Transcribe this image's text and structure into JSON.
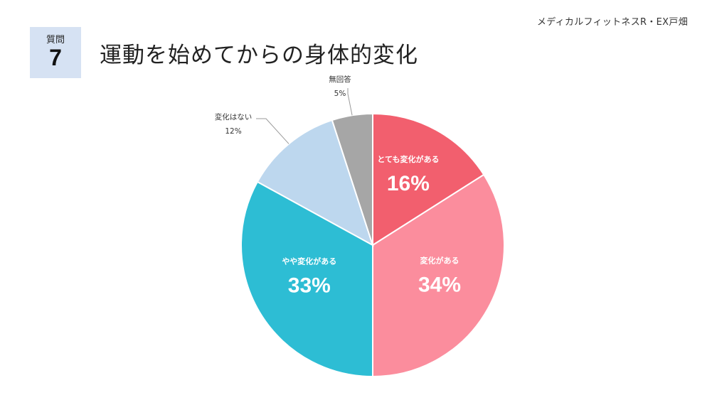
{
  "header": {
    "brand": "メディカルフィットネスR・EX戸畑",
    "question_label": "質問",
    "question_number": "7",
    "title": "運動を始めてからの身体的変化"
  },
  "chart_data": {
    "type": "pie",
    "start": "top",
    "direction": "clockwise",
    "slices": [
      {
        "label": "とても変化がある",
        "value": 16,
        "display": "16%",
        "color": "#f25f6e",
        "label_position": "inside"
      },
      {
        "label": "変化がある",
        "value": 34,
        "display": "34%",
        "color": "#fb8d9d",
        "label_position": "inside"
      },
      {
        "label": "やや変化がある",
        "value": 33,
        "display": "33%",
        "color": "#2dbdd4",
        "label_position": "inside"
      },
      {
        "label": "変化はない",
        "value": 12,
        "display": "12%",
        "color": "#bdd7ee",
        "label_position": "outside"
      },
      {
        "label": "無回答",
        "value": 5,
        "display": "5%",
        "color": "#a6a6a6",
        "label_position": "outside"
      }
    ]
  }
}
